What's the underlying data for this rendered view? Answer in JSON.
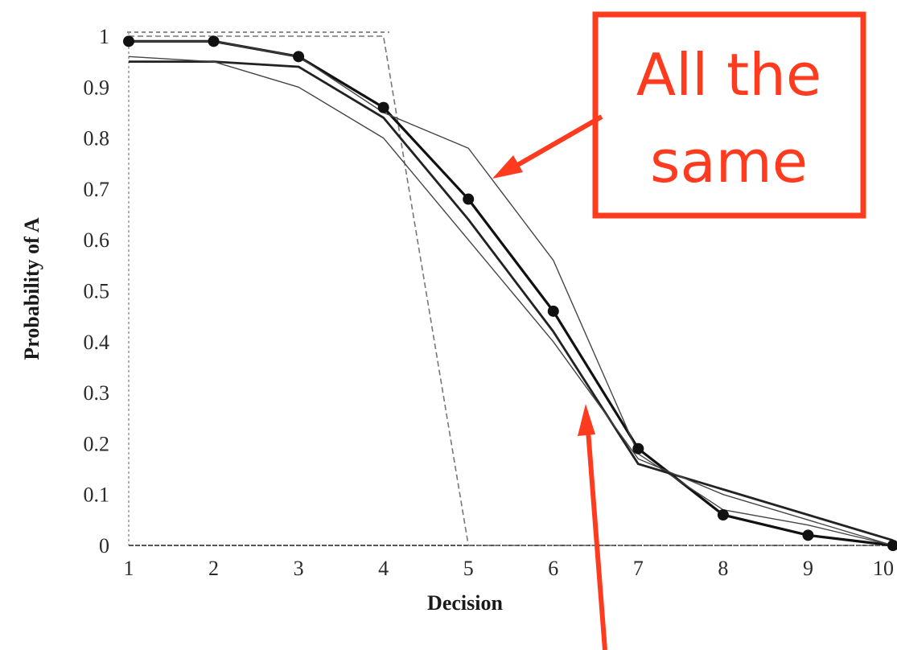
{
  "chart_data": {
    "type": "line",
    "title": "",
    "xlabel": "Decision",
    "ylabel": "Probability of A",
    "x": [
      1,
      2,
      3,
      4,
      5,
      6,
      7,
      8,
      9,
      10
    ],
    "xlim": [
      1,
      10
    ],
    "ylim": [
      0,
      1
    ],
    "x_ticks": [
      "1",
      "2",
      "3",
      "4",
      "5",
      "6",
      "7",
      "8",
      "9",
      "10"
    ],
    "y_ticks": [
      "0",
      "0.1",
      "0.2",
      "0.3",
      "0.4",
      "0.5",
      "0.6",
      "0.7",
      "0.8",
      "0.9",
      "1"
    ],
    "grid": false,
    "legend": "none",
    "series": [
      {
        "style": "dashed",
        "values": [
          1.0,
          1.0,
          1.0,
          1.0,
          0.0,
          0.0,
          0.0,
          0.0,
          0.0,
          0.0
        ]
      },
      {
        "style": "thick-markers",
        "values": [
          0.99,
          0.99,
          0.96,
          0.86,
          0.68,
          0.46,
          0.19,
          0.06,
          0.02,
          0.0
        ]
      },
      {
        "style": "thin",
        "values": [
          0.99,
          0.99,
          0.96,
          0.85,
          0.78,
          0.56,
          0.18,
          0.07,
          0.04,
          0.0
        ]
      },
      {
        "style": "thick",
        "values": [
          0.95,
          0.95,
          0.94,
          0.84,
          0.64,
          0.42,
          0.16,
          0.11,
          0.06,
          0.01
        ]
      },
      {
        "style": "thin",
        "values": [
          0.96,
          0.95,
          0.9,
          0.8,
          0.6,
          0.4,
          0.17,
          0.1,
          0.05,
          0.0
        ]
      }
    ],
    "annotations": [
      {
        "text": [
          "All the",
          "same"
        ],
        "color": "#ff3b1f",
        "style": "boxed"
      }
    ]
  }
}
